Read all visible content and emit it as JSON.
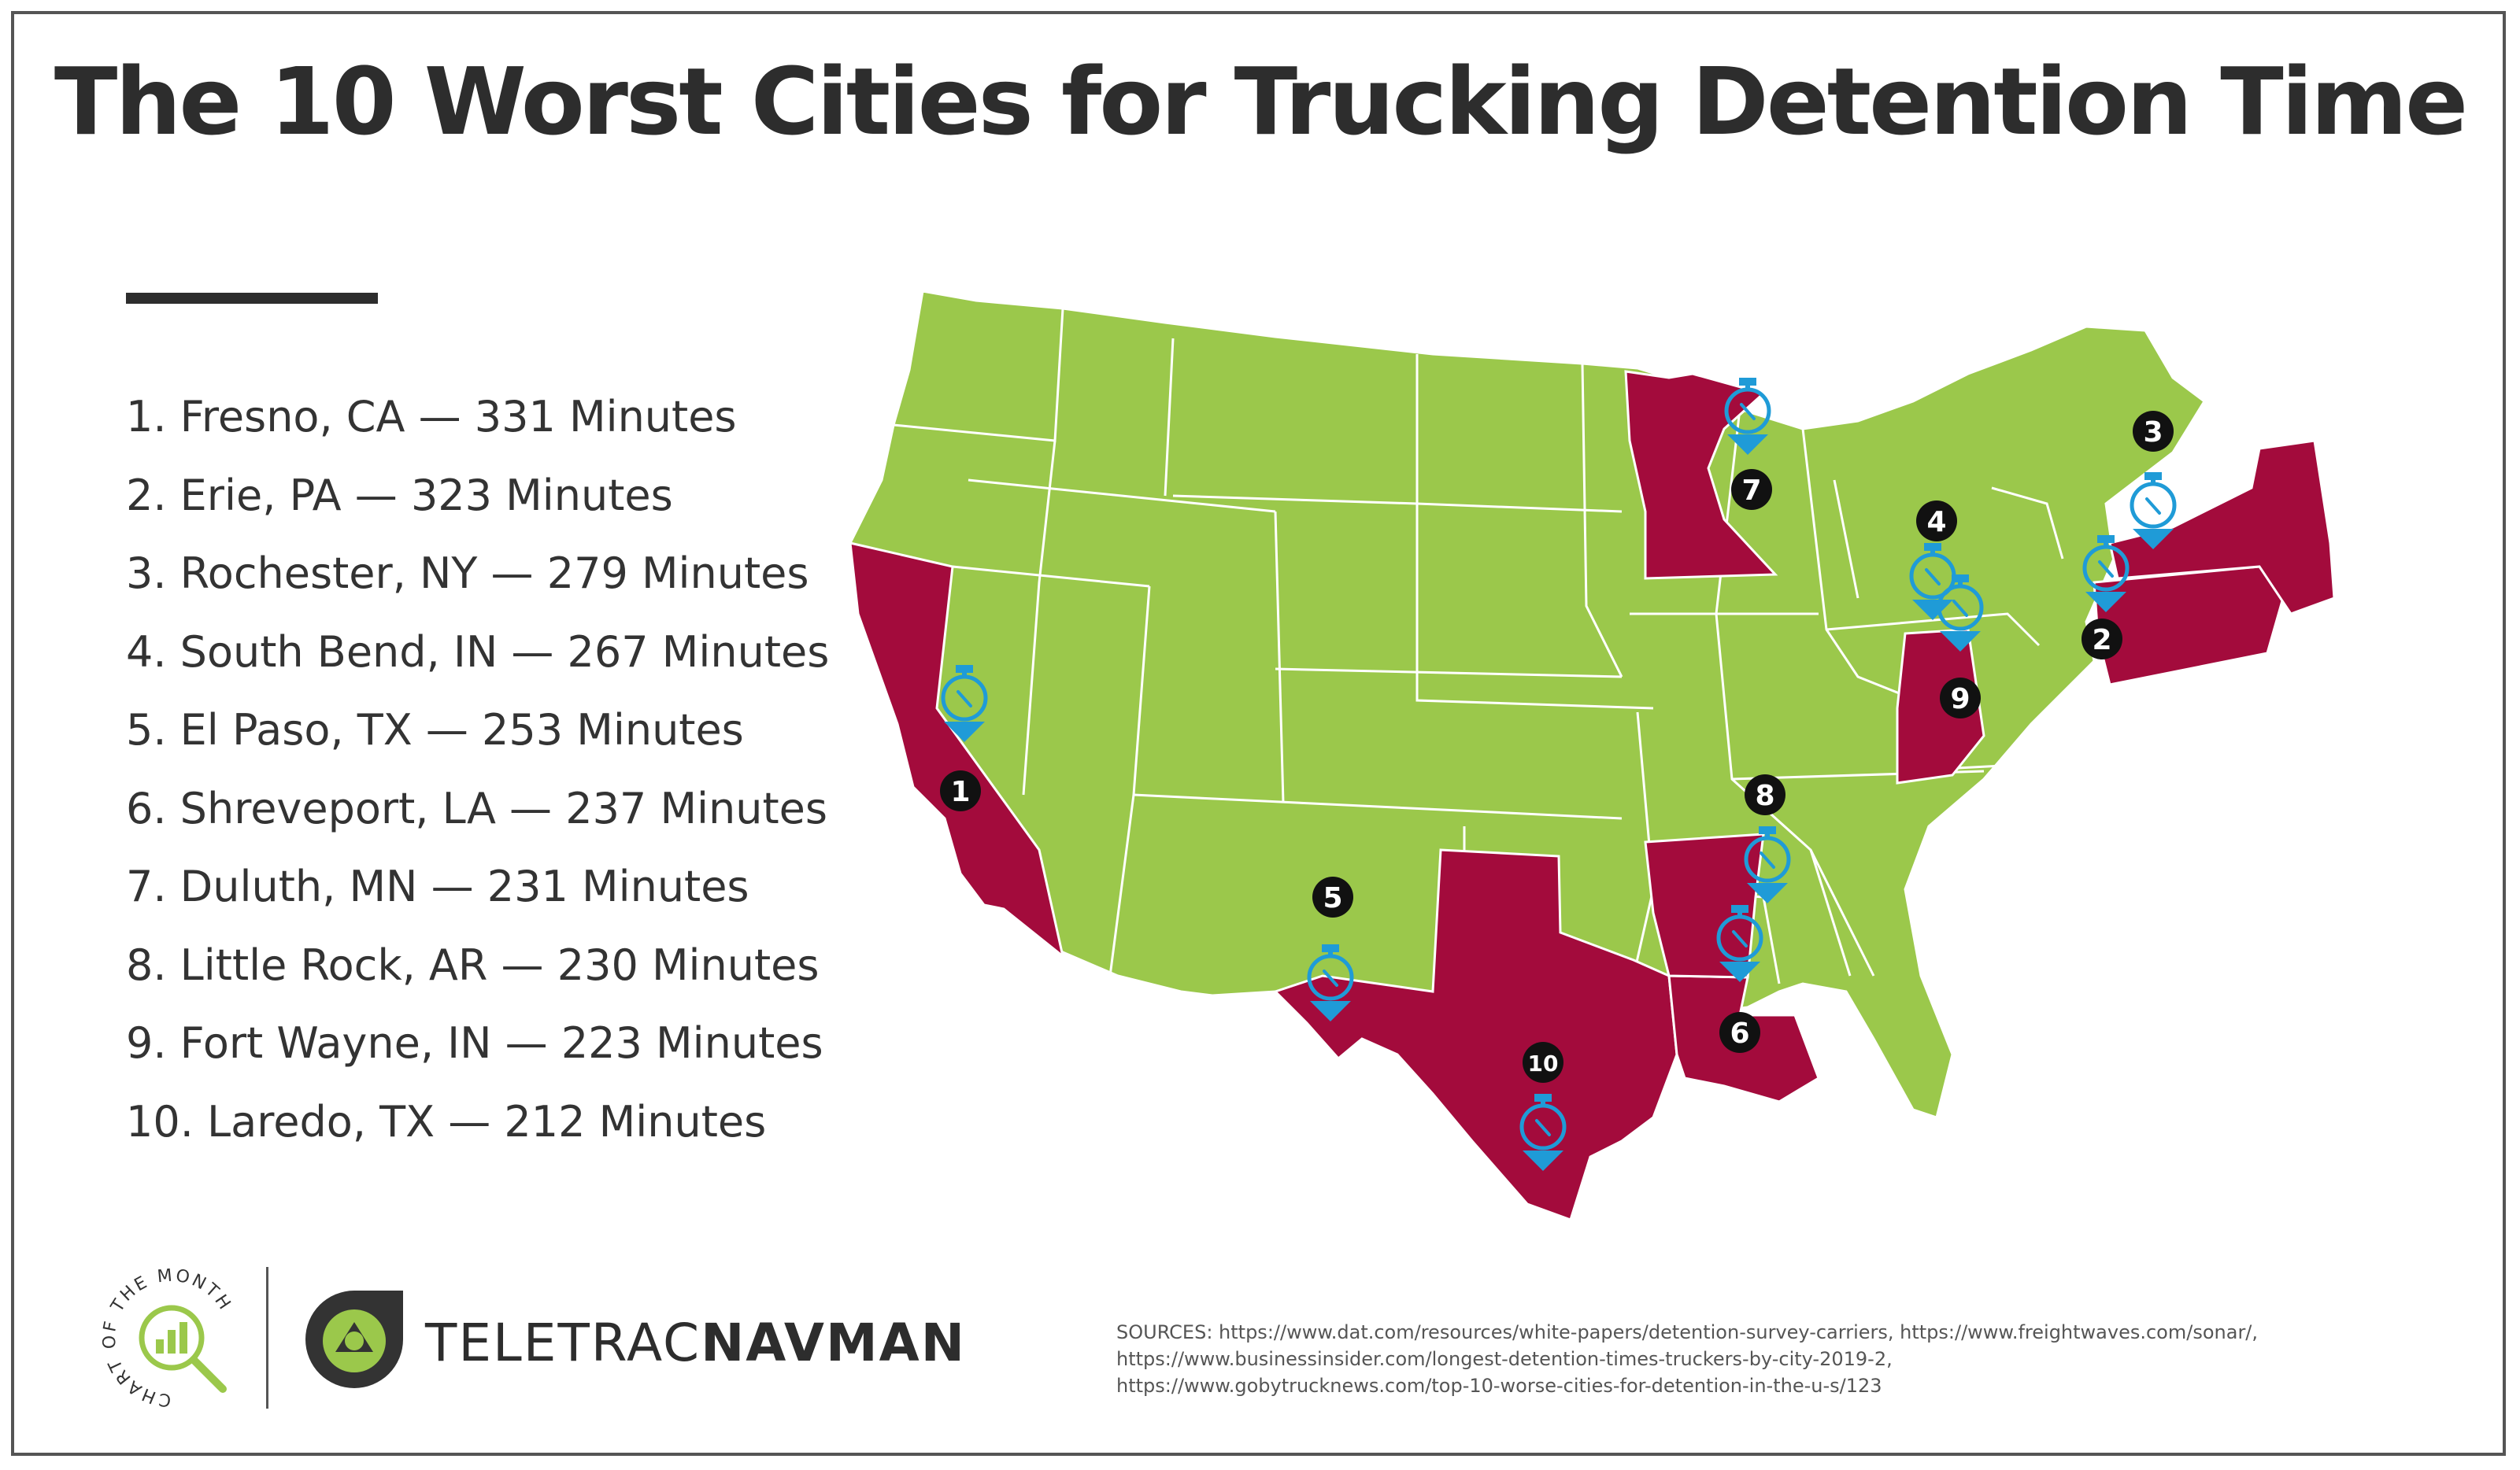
{
  "title": "The 10 Worst Cities for Trucking Detention Time",
  "rankings": [
    {
      "rank": 1,
      "text": "1. Fresno, CA — 331 Minutes",
      "minutes": 331
    },
    {
      "rank": 2,
      "text": "2. Erie, PA — 323 Minutes",
      "minutes": 323
    },
    {
      "rank": 3,
      "text": "3. Rochester, NY — 279 Minutes",
      "minutes": 279
    },
    {
      "rank": 4,
      "text": "4. South Bend, IN — 267 Minutes",
      "minutes": 267
    },
    {
      "rank": 5,
      "text": "5. El Paso, TX — 253 Minutes",
      "minutes": 253
    },
    {
      "rank": 6,
      "text": "6. Shreveport, LA — 237 Minutes",
      "minutes": 237
    },
    {
      "rank": 7,
      "text": "7. Duluth, MN — 231 Minutes",
      "minutes": 231
    },
    {
      "rank": 8,
      "text": "8. Little Rock, AR — 230 Minutes",
      "minutes": 230
    },
    {
      "rank": 9,
      "text": "9. Fort Wayne, IN — 223 Minutes",
      "minutes": 223
    },
    {
      "rank": 10,
      "text": "10. Laredo, TX — 212 Minutes",
      "minutes": 212
    }
  ],
  "map": {
    "highlighted_states": [
      "CA",
      "TX",
      "LA",
      "AR",
      "MN",
      "IN",
      "PA",
      "NY"
    ],
    "markers": [
      {
        "label": "1"
      },
      {
        "label": "2"
      },
      {
        "label": "3"
      },
      {
        "label": "4"
      },
      {
        "label": "5"
      },
      {
        "label": "6"
      },
      {
        "label": "7"
      },
      {
        "label": "8"
      },
      {
        "label": "9"
      },
      {
        "label": "10"
      }
    ]
  },
  "colors": {
    "land": "#9bc84b",
    "highlight": "#a30b3c",
    "marker": "#1f9bd7",
    "badge": "#111111",
    "title": "#2d2d2d"
  },
  "footer": {
    "badge_text": "CHART OF THE MONTH",
    "badge_icon": "bar-chart-magnifier-icon",
    "brand_icon": "teletrac-navman-logo-icon",
    "brand_part1": "TELETRAC",
    "brand_part2": "NAVMAN",
    "sources": [
      "SOURCES: https://www.dat.com/resources/white-papers/detention-survey-carriers, https://www.freightwaves.com/sonar/,",
      "https://www.businessinsider.com/longest-detention-times-truckers-by-city-2019-2,",
      "https://www.gobytrucknews.com/top-10-worse-cities-for-detention-in-the-u-s/123"
    ]
  }
}
